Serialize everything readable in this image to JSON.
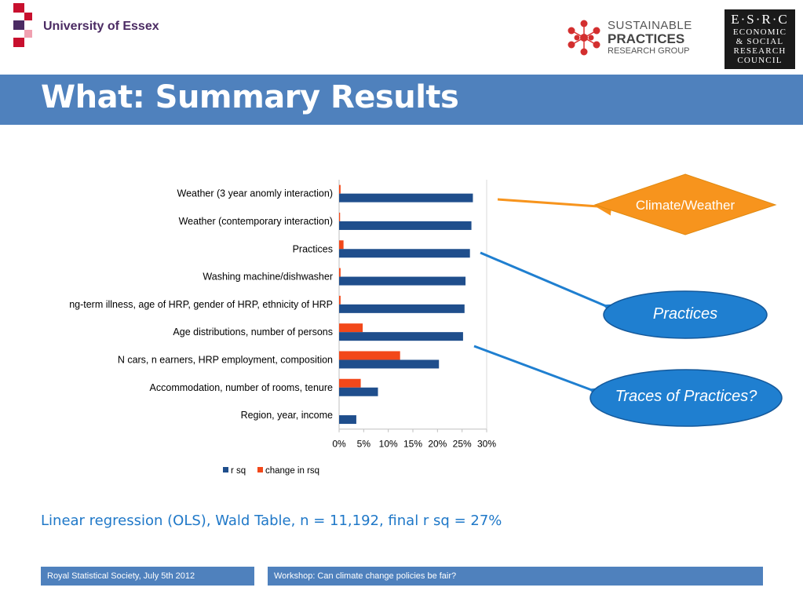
{
  "header": {
    "university_logo_text": "University of Essex",
    "spr_logo": {
      "line1": "SUSTAINABLE",
      "line2": "PRACTICES",
      "line3": "RESEARCH GROUP"
    },
    "esrc_logo": {
      "line1": "E·S·R·C",
      "line2": "ECONOMIC",
      "line3": "& SOCIAL",
      "line4": "RESEARCH",
      "line5": "COUNCIL"
    }
  },
  "title": "What: Summary Results",
  "colors": {
    "title_bar": "#4f81bd",
    "rsq": "#1f4e8c",
    "change": "#f2481a",
    "diamond": "#f7941d",
    "ellipse": "#1f7fd0",
    "arrow_climate": "#f7941d",
    "arrow_practices": "#1f7fd0"
  },
  "chart_data": {
    "type": "bar",
    "orientation": "horizontal",
    "categories": [
      "Weather (3 year anomly interaction)",
      "Weather (contemporary interaction)",
      "Practices",
      "Washing machine/dishwasher",
      "ng-term illness, age of HRP, gender of HRP, ethnicity of HRP",
      "Age distributions, number of persons",
      "N cars, n earners, HRP employment, composition",
      "Accommodation, number of rooms, tenure",
      "Region, year, income"
    ],
    "series": [
      {
        "name": "r sq",
        "values": [
          27.2,
          26.9,
          26.6,
          25.7,
          25.5,
          25.2,
          20.3,
          7.9,
          3.5
        ]
      },
      {
        "name": "change in rsq",
        "values": [
          0.3,
          0.2,
          0.9,
          0.3,
          0.3,
          4.8,
          12.4,
          4.4,
          0.0
        ]
      }
    ],
    "x_ticks": [
      "0%",
      "5%",
      "10%",
      "15%",
      "20%",
      "25%",
      "30%"
    ],
    "xlim": [
      0,
      30
    ],
    "xunit": "%",
    "legend_position": "bottom"
  },
  "callouts": {
    "climate": "Climate/Weather",
    "practices": "Practices",
    "traces": "Traces of Practices?"
  },
  "caption": "Linear regression (OLS), Wald Table, n = 11,192, final r sq = 27%",
  "footer": {
    "left": "Royal Statistical Society, July 5th 2012",
    "right": "Workshop: Can climate change policies be fair?"
  }
}
